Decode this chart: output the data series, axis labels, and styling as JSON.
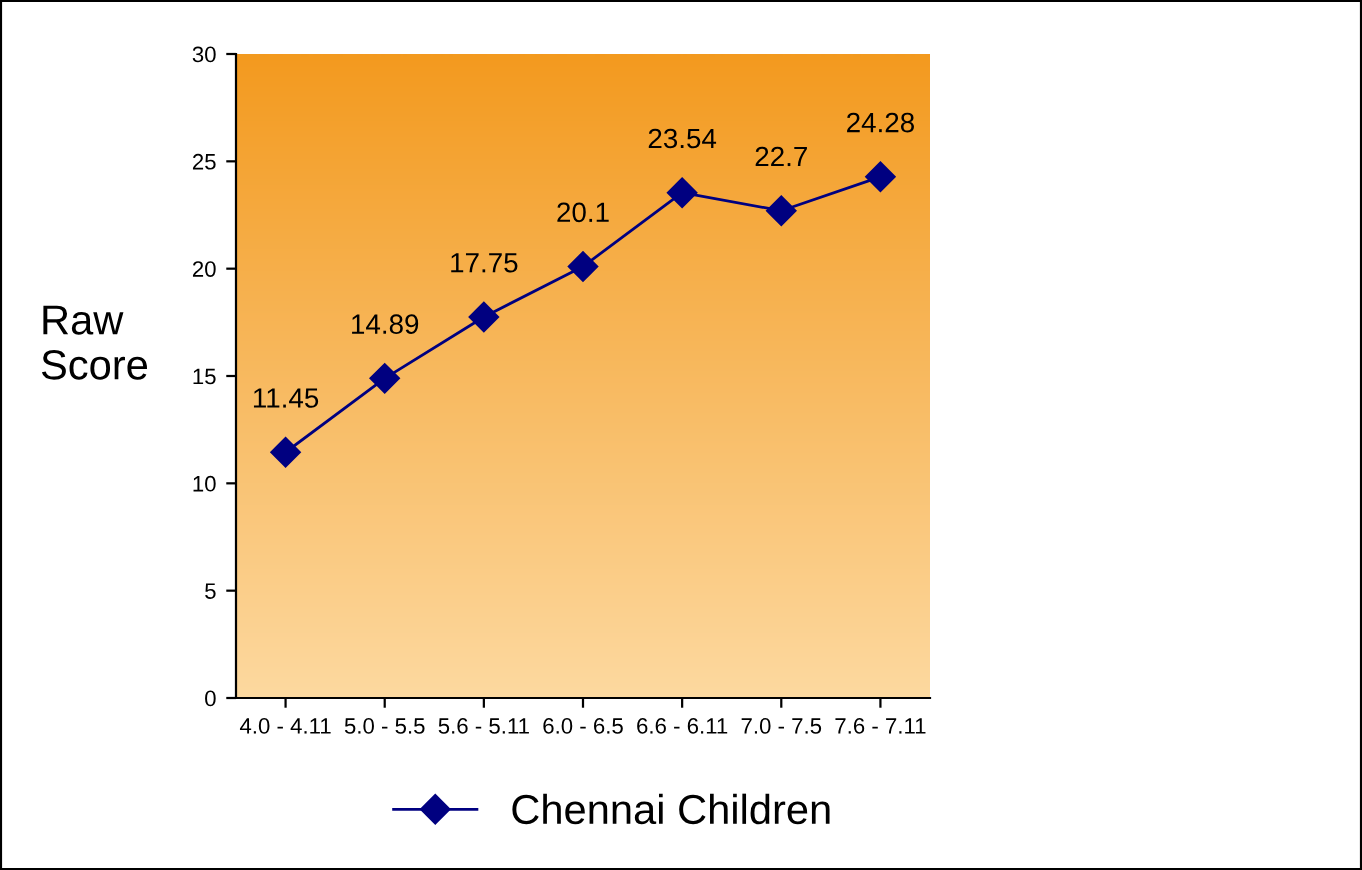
{
  "chart_data": {
    "type": "line",
    "ylabel": "Raw\nScore",
    "categories": [
      "4.0 - 4.11",
      "5.0 - 5.5",
      "5.6 - 5.11",
      "6.0 - 6.5",
      "6.6 - 6.11",
      "7.0 - 7.5",
      "7.6 - 7.11"
    ],
    "series": [
      {
        "name": "Chennai Children",
        "color": "#000080",
        "values": [
          11.45,
          14.89,
          17.75,
          20.1,
          23.54,
          22.7,
          24.28
        ]
      }
    ],
    "ylim": [
      0,
      30
    ],
    "yticks": [
      0,
      5,
      10,
      15,
      20,
      25,
      30
    ],
    "data_labels": true,
    "legend": "bottom",
    "marker": "diamond",
    "line_style": "solid",
    "grid": false
  }
}
